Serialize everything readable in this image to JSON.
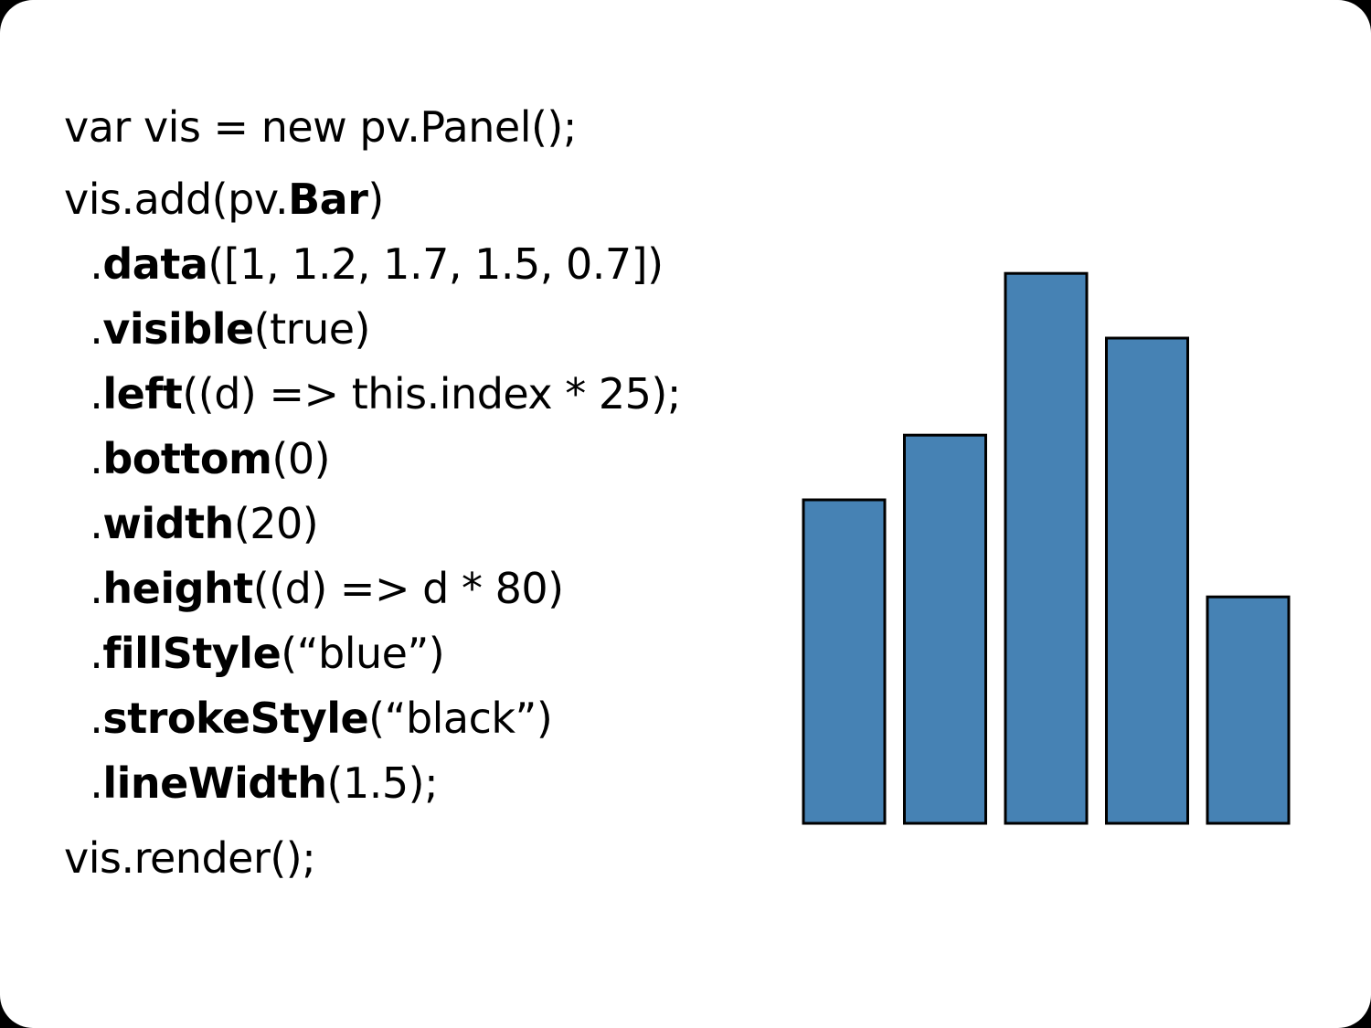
{
  "code": {
    "lines": [
      {
        "segments": [
          {
            "text": "var vis = new pv.Panel();",
            "bold": false
          }
        ]
      },
      {
        "segments": [
          {
            "text": "vis.add(pv.",
            "bold": false
          },
          {
            "text": "Bar",
            "bold": true
          },
          {
            "text": ")",
            "bold": false
          }
        ]
      },
      {
        "segments": [
          {
            "text": "  .",
            "bold": false
          },
          {
            "text": "data",
            "bold": true
          },
          {
            "text": "([1, 1.2, 1.7, 1.5, 0.7])",
            "bold": false
          }
        ]
      },
      {
        "segments": [
          {
            "text": "  .",
            "bold": false
          },
          {
            "text": "visible",
            "bold": true
          },
          {
            "text": "(true)",
            "bold": false
          }
        ]
      },
      {
        "segments": [
          {
            "text": "  .",
            "bold": false
          },
          {
            "text": "left",
            "bold": true
          },
          {
            "text": "((d) => this.index * 25);",
            "bold": false
          }
        ]
      },
      {
        "segments": [
          {
            "text": "  .",
            "bold": false
          },
          {
            "text": "bottom",
            "bold": true
          },
          {
            "text": "(0)",
            "bold": false
          }
        ]
      },
      {
        "segments": [
          {
            "text": "  .",
            "bold": false
          },
          {
            "text": "width",
            "bold": true
          },
          {
            "text": "(20)",
            "bold": false
          }
        ]
      },
      {
        "segments": [
          {
            "text": "  .",
            "bold": false
          },
          {
            "text": "height",
            "bold": true
          },
          {
            "text": "((d) => d * 80)",
            "bold": false
          }
        ]
      },
      {
        "segments": [
          {
            "text": "  .",
            "bold": false
          },
          {
            "text": "fillStyle",
            "bold": true
          },
          {
            "text": "(“blue”)",
            "bold": false
          }
        ]
      },
      {
        "segments": [
          {
            "text": "  .",
            "bold": false
          },
          {
            "text": "strokeStyle",
            "bold": true
          },
          {
            "text": "(“black”)",
            "bold": false
          }
        ]
      },
      {
        "segments": [
          {
            "text": "  .",
            "bold": false
          },
          {
            "text": "lineWidth",
            "bold": true
          },
          {
            "text": "(1.5);",
            "bold": false
          }
        ]
      },
      {
        "segments": [
          {
            "text": "vis.render();",
            "bold": false
          }
        ]
      }
    ]
  },
  "chart_data": {
    "type": "bar",
    "values": [
      1,
      1.2,
      1.7,
      1.5,
      0.7
    ],
    "fill_color": "#4682b4",
    "stroke_color": "#000000",
    "grid": false,
    "legend": "none",
    "axes": "none"
  }
}
